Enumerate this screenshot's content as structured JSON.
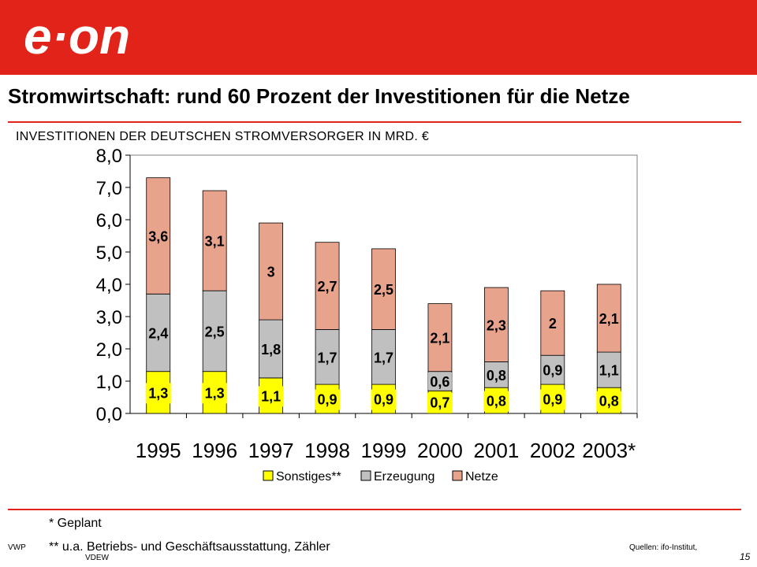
{
  "brand": {
    "logo_text": "e·on",
    "color": "#e2231a"
  },
  "slide": {
    "title": "Stromwirtschaft: rund 60 Prozent der Investitionen für die Netze",
    "footnote_planned": "* Geplant",
    "footnote_other": "** u.a. Betriebs- und Geschäftsausstattung, Zähler",
    "left_code": "VWP",
    "sources": "Quellen: ifo-Institut,",
    "sources_line2": "VDEW",
    "page_number": "15"
  },
  "chart_data": {
    "type": "bar",
    "stacked": true,
    "title": "INVESTITIONEN DER DEUTSCHEN STROMVERSORGER IN MRD. €",
    "categories": [
      "1995",
      "1996",
      "1997",
      "1998",
      "1999",
      "2000",
      "2001",
      "2002",
      "2003*"
    ],
    "series": [
      {
        "name": "Sonstiges**",
        "color": "#ffff00",
        "values": [
          1.3,
          1.3,
          1.1,
          0.9,
          0.9,
          0.7,
          0.8,
          0.9,
          0.8
        ],
        "labels": [
          "1,3",
          "1,3",
          "1,1",
          "0,9",
          "0,9",
          "0,7",
          "0,8",
          "0,9",
          "0,8"
        ]
      },
      {
        "name": "Erzeugung",
        "color": "#c0c0c0",
        "values": [
          2.4,
          2.5,
          1.8,
          1.7,
          1.7,
          0.6,
          0.8,
          0.9,
          1.1
        ],
        "labels": [
          "2,4",
          "2,5",
          "1,8",
          "1,7",
          "1,7",
          "0,6",
          "0,8",
          "0,9",
          "1,1"
        ]
      },
      {
        "name": "Netze",
        "color": "#e8a38c",
        "values": [
          3.6,
          3.1,
          3.0,
          2.7,
          2.5,
          2.1,
          2.3,
          2.0,
          2.1
        ],
        "labels": [
          "3,6",
          "3,1",
          "3",
          "2,7",
          "2,5",
          "2,1",
          "2,3",
          "2",
          "2,1"
        ]
      }
    ],
    "ylim": [
      0,
      8
    ],
    "yticks": [
      0,
      1,
      2,
      3,
      4,
      5,
      6,
      7,
      8
    ],
    "ytick_labels": [
      "0,0",
      "1,0",
      "2,0",
      "3,0",
      "4,0",
      "5,0",
      "6,0",
      "7,0",
      "8,0"
    ],
    "grid": false,
    "legend_position": "bottom"
  }
}
